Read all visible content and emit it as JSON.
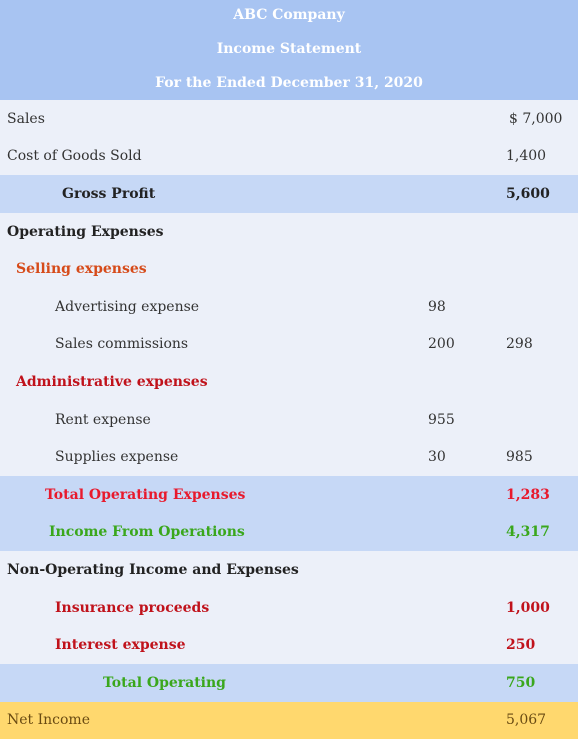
{
  "header": {
    "company": "ABC Company",
    "statement": "Income Statement",
    "period": "For the Ended December 31, 2020"
  },
  "rows": {
    "sales": {
      "label": "Sales",
      "total": "$  7,000"
    },
    "cogs": {
      "label": "Cost of Goods Sold",
      "total": "1,400"
    },
    "gross_profit": {
      "label": "Gross Profit",
      "total": "5,600"
    },
    "operating_expenses": {
      "label": "Operating Expenses"
    },
    "selling_expenses": {
      "label": "Selling expenses"
    },
    "advertising": {
      "label": "Advertising expense",
      "amount": "98"
    },
    "commissions": {
      "label": "Sales commissions",
      "amount": "200",
      "total": "298"
    },
    "admin_expenses": {
      "label": "Administrative expenses"
    },
    "rent": {
      "label": "Rent expense",
      "amount": "955"
    },
    "supplies": {
      "label": "Supplies expense",
      "amount": "30",
      "total": "985"
    },
    "total_operating_expenses": {
      "label": "Total Operating Expenses",
      "total": "1,283"
    },
    "income_from_operations": {
      "label": "Income From Operations",
      "total": "4,317"
    },
    "non_operating": {
      "label": "Non-Operating Income and Expenses"
    },
    "insurance": {
      "label": "Insurance proceeds",
      "total": "1,000"
    },
    "interest": {
      "label": "Interest expense",
      "total": "250"
    },
    "total_operating": {
      "label": "Total Operating",
      "total": "750"
    },
    "net_income": {
      "label": "Net Income",
      "total": "5,067"
    }
  },
  "colors": {
    "header_bg": "#a8c4f2",
    "light_row_bg": "#ecf0f9",
    "highlight_row_bg": "#c6d8f6",
    "net_income_bg": "#ffd86e",
    "selling_label": "#d64b1a",
    "admin_label": "#c0121b",
    "total_opex_label": "#e8192c",
    "income_ops_label": "#3aa71c"
  }
}
